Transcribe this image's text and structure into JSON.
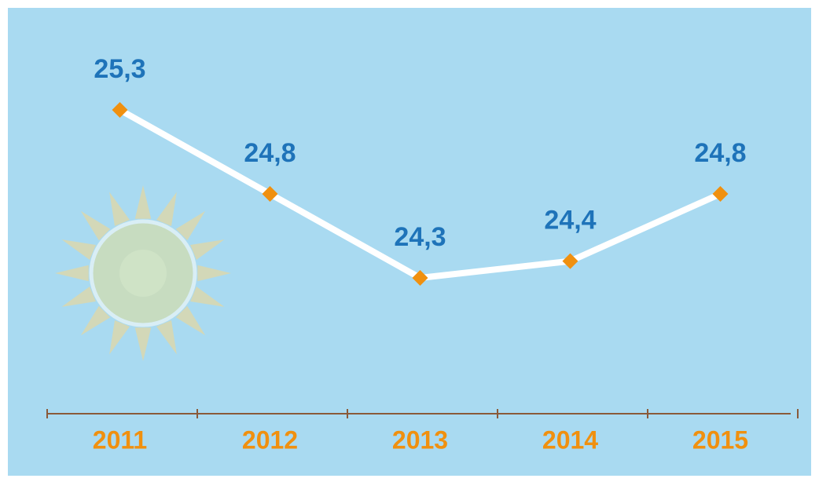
{
  "chart_data": {
    "type": "line",
    "categories": [
      "2011",
      "2012",
      "2013",
      "2014",
      "2015"
    ],
    "values": [
      25.3,
      24.8,
      24.3,
      24.4,
      24.8
    ],
    "value_labels": [
      "25,3",
      "24,8",
      "24,3",
      "24,4",
      "24,8"
    ],
    "color": "#ffffff",
    "marker_color": "#f0900f",
    "label_color": "#1e73b9",
    "category_color": "#f0900f"
  }
}
